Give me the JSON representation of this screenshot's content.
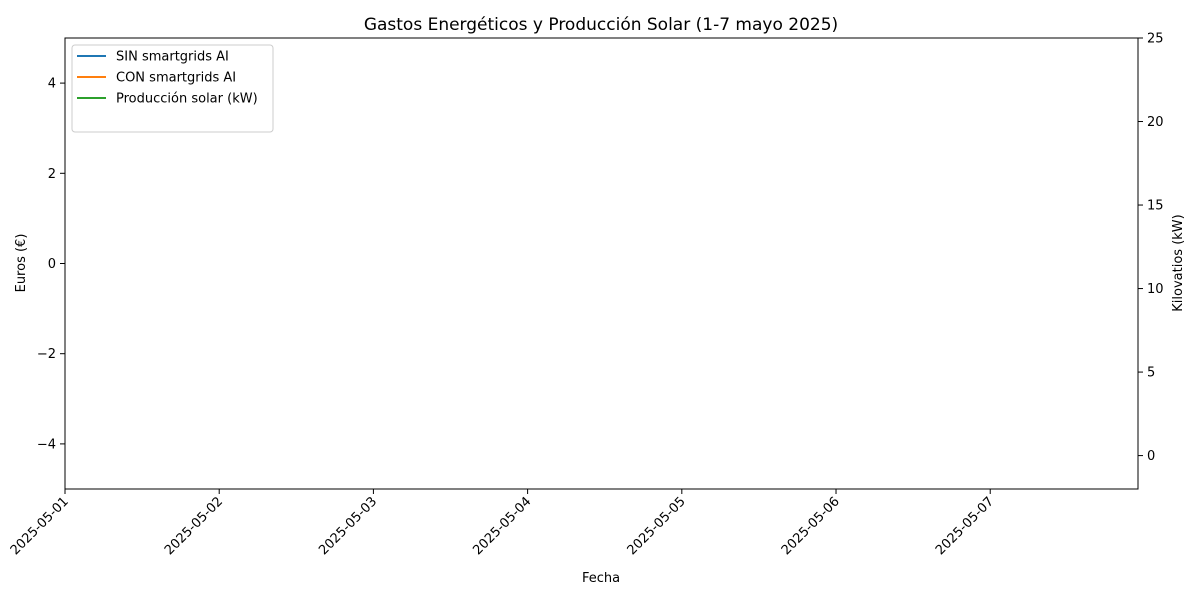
{
  "chart_data": {
    "type": "line",
    "title": "Gastos Energéticos y Producción Solar (1-7 mayo 2025)",
    "xlabel": "Fecha",
    "ylabel_left": "Euros (€)",
    "ylabel_right": "Kilovatios (kW)",
    "x_ticks": [
      "2025-05-01",
      "2025-05-02",
      "2025-05-03",
      "2025-05-04",
      "2025-05-05",
      "2025-05-06",
      "2025-05-07"
    ],
    "xlim": [
      "2025-05-01",
      "2025-05-07T23:00"
    ],
    "ylim_left": [
      -5,
      5
    ],
    "yticks_left": [
      -4,
      -2,
      0,
      2,
      4
    ],
    "ylim_right": [
      -2,
      25
    ],
    "yticks_right": [
      0,
      5,
      10,
      15,
      20,
      25
    ],
    "grid": false,
    "legend_position": "upper-left",
    "series": [
      {
        "name": "SIN smartgrids AI",
        "axis": "left",
        "color": "#1f77b4",
        "x": [],
        "values": []
      },
      {
        "name": "CON smartgrids AI",
        "axis": "left",
        "color": "#ff7f0e",
        "x": [],
        "values": []
      },
      {
        "name": "Producción solar (kW)",
        "axis": "right",
        "color": "#2ca02c",
        "x": [],
        "values": []
      }
    ]
  }
}
